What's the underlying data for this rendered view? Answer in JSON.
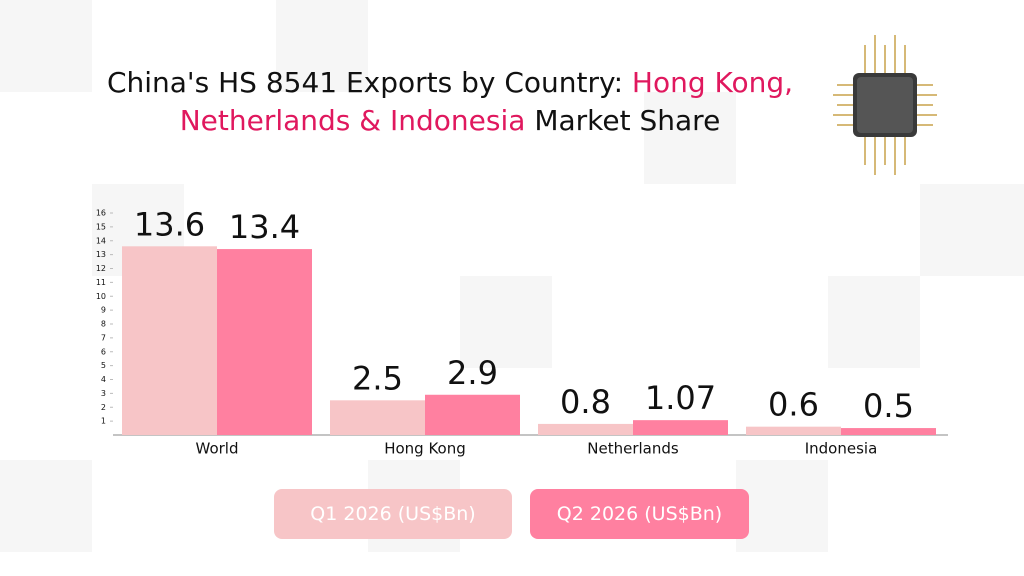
{
  "chart_data": {
    "type": "bar",
    "title": [
      "China's HS 8541 Exports by Country:",
      "Hong Kong, Netherlands & Indonesia",
      "Market Share"
    ],
    "title_highlight_color": "#e0185e",
    "categories": [
      "World",
      "Hong Kong",
      "Netherlands",
      "Indonesia"
    ],
    "series": [
      {
        "name": "Q1 2026 (US$Bn)",
        "color": "#f7c5c7",
        "values": [
          13.6,
          2.5,
          0.8,
          0.6
        ]
      },
      {
        "name": "Q2 2026 (US$Bn)",
        "color": "#ff80a0",
        "values": [
          13.4,
          2.9,
          1.07,
          0.5
        ]
      }
    ],
    "ylim": [
      0,
      16
    ],
    "yticks": [
      1,
      2,
      3,
      4,
      5,
      6,
      7,
      8,
      9,
      10,
      11,
      12,
      13,
      14,
      15,
      16
    ],
    "grid": false
  }
}
